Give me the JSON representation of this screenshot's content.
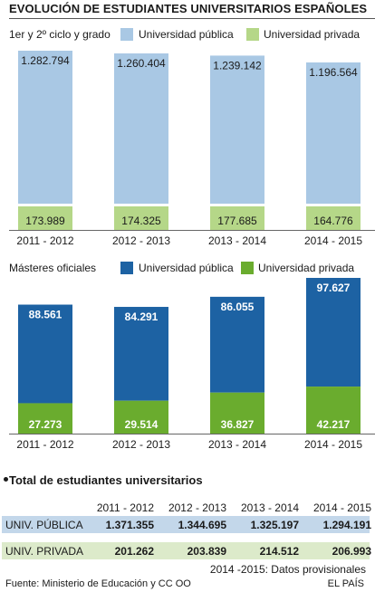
{
  "title": "EVOLUCIÓN DE ESTUDIANTES UNIVERSITARIOS ESPAÑOLES",
  "colors": {
    "grado_publica": "#a9c8e4",
    "grado_privada": "#b5d788",
    "master_publica": "#1d62a3",
    "master_privada": "#6aac2e",
    "table_publica_band": "#c3d7ea",
    "table_privada_band": "#dceaca"
  },
  "chart_data": [
    {
      "type": "bar",
      "title": "1er y 2º ciclo y grado",
      "categories": [
        "2011 - 2012",
        "2012 - 2013",
        "2013 - 2014",
        "2014 - 2015"
      ],
      "series": [
        {
          "name": "Universidad pública",
          "values": [
            1282794,
            1260404,
            1239142,
            1196564
          ],
          "labels": [
            "1.282.794",
            "1.260.404",
            "1.239.142",
            "1.196.564"
          ]
        },
        {
          "name": "Universidad privada",
          "values": [
            173989,
            174325,
            177685,
            164776
          ],
          "labels": [
            "173.989",
            "174.325",
            "177.685",
            "164.776"
          ]
        }
      ],
      "stacked": true,
      "legend": "top"
    },
    {
      "type": "bar",
      "title": "Másteres oficiales",
      "categories": [
        "2011 - 2012",
        "2012 - 2013",
        "2013 - 2014",
        "2014 - 2015"
      ],
      "series": [
        {
          "name": "Universidad pública",
          "values": [
            88561,
            84291,
            86055,
            97627
          ],
          "labels": [
            "88.561",
            "84.291",
            "86.055",
            "97.627"
          ]
        },
        {
          "name": "Universidad privada",
          "values": [
            27273,
            29514,
            36827,
            42217
          ],
          "labels": [
            "27.273",
            "29.514",
            "36.827",
            "42.217"
          ]
        }
      ],
      "stacked": true,
      "legend": "top"
    },
    {
      "type": "table",
      "title": "Total de estudiantes universitarios",
      "columns": [
        "2011 - 2012",
        "2012 - 2013",
        "2013 - 2014",
        "2014 - 2015"
      ],
      "rows": [
        {
          "label": "UNIV. PÚBLICA",
          "values": [
            "1.371.355",
            "1.344.695",
            "1.325.197",
            "1.294.191"
          ]
        },
        {
          "label": "UNIV. PRIVADA",
          "values": [
            "201.262",
            "203.839",
            "214.512",
            "206.993"
          ]
        }
      ]
    }
  ],
  "note": "2014  -2015: Datos provisionales",
  "source": "Fuente: Ministerio de Educación y CC OO",
  "brand": "EL PAÍS"
}
